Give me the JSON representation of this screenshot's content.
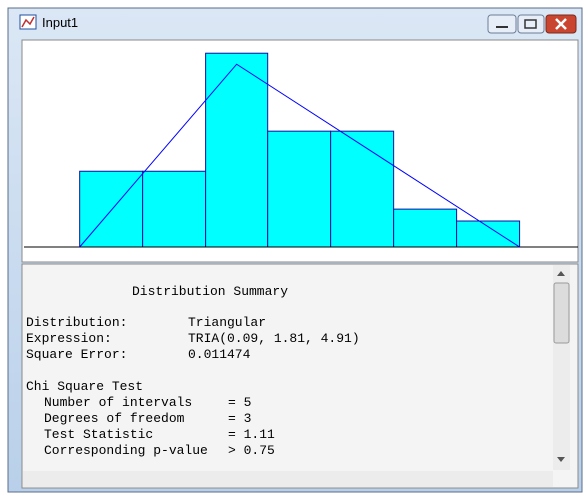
{
  "window": {
    "title": "Input1"
  },
  "chart_data": {
    "type": "histogram",
    "bins": [
      0.09,
      0.78,
      1.47,
      2.15,
      2.84,
      3.53,
      4.22,
      4.91
    ],
    "values": [
      0.172,
      0.172,
      0.44,
      0.263,
      0.263,
      0.086,
      0.059
    ],
    "color": "#00ffff",
    "edge_color": "#1010a0",
    "line": {
      "x": [
        0.09,
        1.81,
        4.91
      ],
      "values": [
        0,
        0.415,
        0
      ],
      "color": "#0000ff"
    },
    "xlim": [
      -0.52,
      5.55
    ],
    "ylim": [
      0,
      0.47
    ]
  },
  "summary": {
    "title": "Distribution Summary",
    "rows": [
      {
        "label": "Distribution:",
        "value": "Triangular"
      },
      {
        "label": "Expression:",
        "value": "TRIA(0.09, 1.81, 4.91)"
      },
      {
        "label": "Square Error:",
        "value": "0.011474"
      }
    ],
    "test_title": "Chi Square Test",
    "test_rows": [
      {
        "label": "Number of intervals",
        "value": "= 5"
      },
      {
        "label": "Degrees of freedom",
        "value": "= 3"
      },
      {
        "label": "Test Statistic",
        "value": "= 1.11"
      },
      {
        "label": "Corresponding p-value",
        "value": "> 0.75"
      }
    ]
  }
}
